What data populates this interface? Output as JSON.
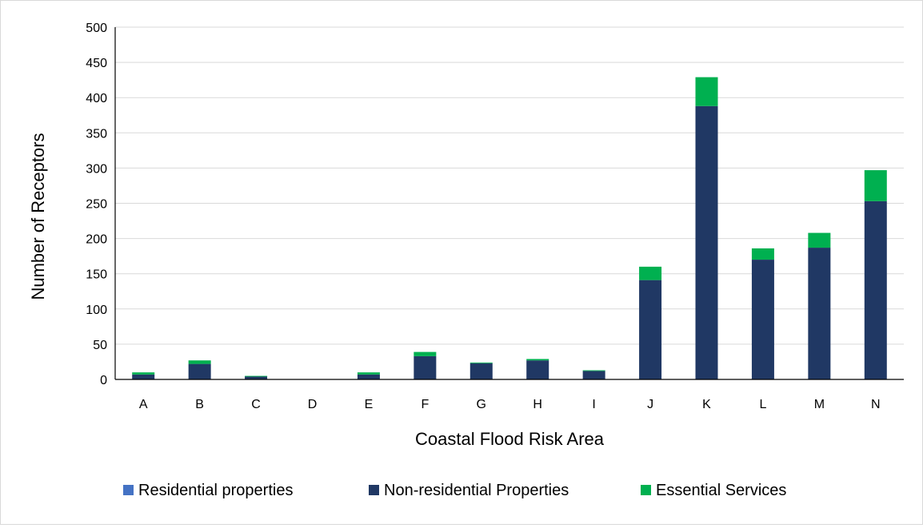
{
  "chart_data": {
    "type": "bar",
    "stacked": true,
    "title": "",
    "xlabel": "Coastal Flood Risk Area",
    "ylabel": "Number of Receptors",
    "ylim": [
      0,
      500
    ],
    "yticks": [
      0,
      50,
      100,
      150,
      200,
      250,
      300,
      350,
      400,
      450,
      500
    ],
    "grid": true,
    "legend_position": "bottom",
    "categories": [
      "A",
      "B",
      "C",
      "D",
      "E",
      "F",
      "G",
      "H",
      "I",
      "J",
      "K",
      "L",
      "M",
      "N"
    ],
    "series": [
      {
        "name": "Residential properties",
        "color": "#4472c4",
        "values": [
          0,
          0,
          0,
          0,
          0,
          0,
          0,
          0,
          0,
          0,
          0,
          0,
          0,
          0
        ]
      },
      {
        "name": "Non-residential Properties",
        "color": "#203864",
        "values": [
          7,
          22,
          4,
          0,
          7,
          33,
          23,
          27,
          12,
          141,
          388,
          170,
          187,
          253
        ]
      },
      {
        "name": "Essential Services",
        "color": "#00b050",
        "values": [
          3,
          5,
          1,
          0,
          3,
          6,
          1,
          2,
          1,
          19,
          41,
          16,
          21,
          44
        ]
      }
    ]
  }
}
